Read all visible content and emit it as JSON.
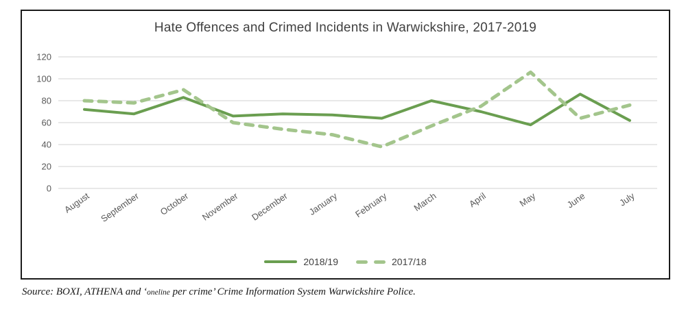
{
  "chart": {
    "title": "Hate Offences and Crimed Incidents in Warwickshire, 2017-2019"
  },
  "chart_data": {
    "type": "line",
    "title": "Hate Offences and Crimed Incidents in Warwickshire, 2017-2019",
    "categories": [
      "August",
      "September",
      "October",
      "November",
      "December",
      "January",
      "February",
      "March",
      "April",
      "May",
      "June",
      "July"
    ],
    "series": [
      {
        "name": "2018/19",
        "style": "solid",
        "color": "#6A9E50",
        "values": [
          72,
          68,
          83,
          66,
          68,
          67,
          64,
          80,
          70,
          58,
          86,
          62
        ]
      },
      {
        "name": "2017/18",
        "style": "dashed",
        "color": "#A3C58C",
        "values": [
          80,
          78,
          90,
          60,
          54,
          49,
          38,
          57,
          75,
          106,
          64,
          76
        ]
      }
    ],
    "xlabel": "",
    "ylabel": "",
    "ylim": [
      0,
      120
    ],
    "yticks": [
      0,
      20,
      40,
      60,
      80,
      100,
      120
    ],
    "grid": "horizontal",
    "legend_position": "bottom-center",
    "colors": {
      "grid": "#D9D9D9",
      "axis_text": "#595959",
      "title_text": "#404040",
      "frame_border": "#1A1A1A"
    }
  },
  "source": {
    "prefix": "Source: BOXI, ATHENA and ‘",
    "small": "oneline",
    "suffix": " per crime’ Crime Information System Warwickshire Police."
  }
}
